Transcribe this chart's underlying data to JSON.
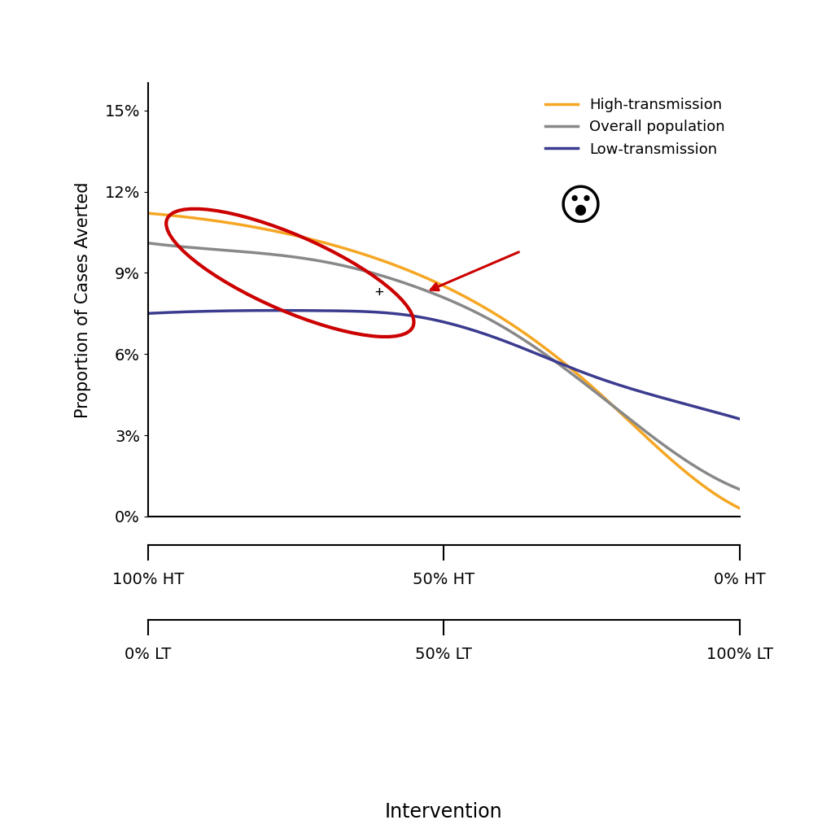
{
  "ylabel": "Proportion of Cases Averted",
  "xlabel": "Intervention",
  "ylim": [
    0,
    0.16
  ],
  "yticks": [
    0,
    0.03,
    0.06,
    0.09,
    0.12,
    0.15
  ],
  "ytick_labels": [
    "0%",
    "3%",
    "6%",
    "9%",
    "12%",
    "15%"
  ],
  "ht_axis_labels": [
    "100% HT",
    "50% HT",
    "0% HT"
  ],
  "lt_axis_labels": [
    "0% LT",
    "50% LT",
    "100% LT"
  ],
  "high_color": "#F5A623",
  "overall_color": "#888888",
  "low_color": "#3B3B8F",
  "red_color": "#CC0000",
  "legend_labels": [
    "High-transmission",
    "Overall population",
    "Low-transmission"
  ],
  "line_width": 2.5,
  "background_color": "#ffffff",
  "high_x": [
    0.0,
    0.15,
    0.3,
    0.45,
    0.6,
    0.75,
    0.9,
    1.0
  ],
  "high_y": [
    0.112,
    0.108,
    0.101,
    0.09,
    0.073,
    0.048,
    0.018,
    0.003
  ],
  "overall_x": [
    0.0,
    0.15,
    0.3,
    0.45,
    0.6,
    0.75,
    0.9,
    1.0
  ],
  "overall_y": [
    0.101,
    0.098,
    0.094,
    0.085,
    0.07,
    0.047,
    0.022,
    0.01
  ],
  "low_x": [
    0.0,
    0.15,
    0.3,
    0.45,
    0.6,
    0.75,
    0.9,
    1.0
  ],
  "low_y": [
    0.075,
    0.076,
    0.076,
    0.074,
    0.065,
    0.052,
    0.042,
    0.036
  ]
}
